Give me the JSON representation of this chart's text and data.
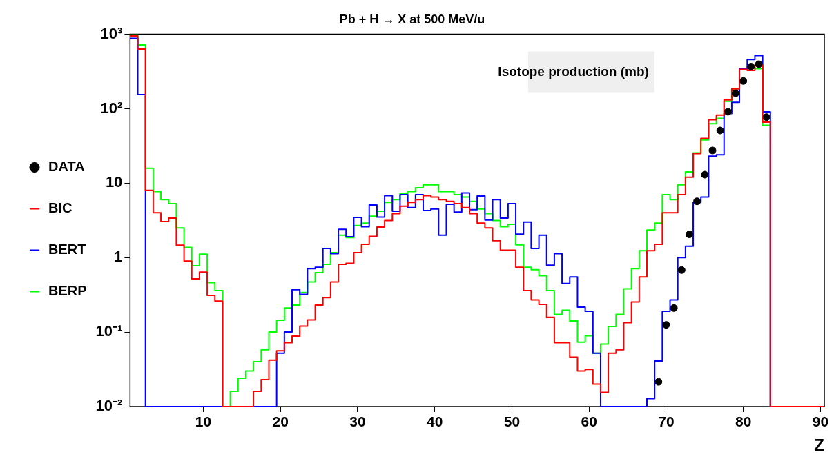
{
  "chart_data": {
    "type": "histogram",
    "title": "Pb + H → X at 500 MeV/u",
    "xlabel": "Z",
    "annotations": [
      "Isotope production (mb)"
    ],
    "bins": [
      0.5,
      1.5,
      2.5,
      3.5,
      4.5,
      5.5,
      6.5,
      7.5,
      8.5,
      9.5,
      10.5,
      11.5,
      12.5,
      13.5,
      14.5,
      15.5,
      16.5,
      17.5,
      18.5,
      19.5,
      20.5,
      21.5,
      22.5,
      23.5,
      24.5,
      25.5,
      26.5,
      27.5,
      28.5,
      29.5,
      30.5,
      31.5,
      32.5,
      33.5,
      34.5,
      35.5,
      36.5,
      37.5,
      38.5,
      39.5,
      40.5,
      41.5,
      42.5,
      43.5,
      44.5,
      45.5,
      46.5,
      47.5,
      48.5,
      49.5,
      50.5,
      51.5,
      52.5,
      53.5,
      54.5,
      55.5,
      56.5,
      57.5,
      58.5,
      59.5,
      60.5,
      61.5,
      62.5,
      63.5,
      64.5,
      65.5,
      66.5,
      67.5,
      68.5,
      69.5,
      70.5,
      71.5,
      72.5,
      73.5,
      74.5,
      75.5,
      76.5,
      77.5,
      78.5,
      79.5,
      80.5,
      81.5,
      82.5,
      83.5,
      84.5,
      85.5,
      86.5,
      87.5,
      88.5,
      89.5,
      90.5
    ],
    "series": [
      {
        "name": "DATA",
        "type": "scatter",
        "marker": "circle",
        "color": "#000000",
        "x": [
          69,
          70,
          71,
          72,
          73,
          74,
          75,
          76,
          77,
          78,
          79,
          80,
          81,
          82,
          83
        ],
        "values": [
          0.0215,
          0.125,
          0.21,
          0.68,
          2.05,
          5.7,
          13,
          27.5,
          51,
          91,
          161,
          236,
          367,
          396,
          77
        ]
      },
      {
        "name": "BIC",
        "color": "#ff0000",
        "values": [
          950,
          634,
          8.0,
          4.0,
          3.05,
          3.4,
          1.47,
          0.9,
          0.52,
          0.64,
          0.31,
          0.26,
          0.01,
          0.01,
          0.01,
          0.01,
          0.016,
          0.023,
          0.042,
          0.056,
          0.072,
          0.088,
          0.12,
          0.146,
          0.23,
          0.29,
          0.47,
          0.81,
          0.84,
          1.17,
          1.51,
          1.93,
          2.57,
          3.15,
          3.9,
          4.9,
          5.5,
          6.0,
          6.8,
          6.5,
          6.0,
          5.7,
          5.3,
          4.7,
          3.9,
          2.9,
          2.5,
          1.69,
          1.26,
          1.26,
          0.74,
          0.36,
          0.27,
          0.235,
          0.158,
          0.072,
          0.072,
          0.046,
          0.03,
          0.0315,
          0.02,
          0.0155,
          0.052,
          0.058,
          0.134,
          0.254,
          0.55,
          1.24,
          1.51,
          4.0,
          4.0,
          7.0,
          12,
          25,
          40,
          71,
          82,
          131,
          185,
          337,
          327,
          387,
          66,
          0.01,
          0.01,
          0.01,
          0.01,
          0.01,
          0.01,
          0.01
        ]
      },
      {
        "name": "BERT",
        "color": "#0000ff",
        "values": [
          880,
          155,
          0.01,
          0.01,
          0.01,
          0.01,
          0.01,
          0.01,
          0.01,
          0.01,
          0.01,
          0.01,
          0.01,
          0.01,
          0.01,
          0.01,
          0.01,
          0.01,
          0.01,
          0.052,
          0.1,
          0.37,
          0.32,
          0.71,
          0.74,
          1.33,
          1.13,
          2.4,
          1.91,
          3.47,
          2.6,
          5.1,
          3.5,
          6.8,
          4.2,
          7.0,
          4.7,
          7.0,
          4.3,
          4.5,
          2.0,
          5.2,
          4.1,
          7.4,
          4.4,
          6.7,
          3.2,
          6.0,
          3.4,
          5.3,
          2.07,
          3.0,
          1.33,
          2.0,
          0.79,
          1.13,
          0.45,
          0.55,
          0.216,
          0.19,
          0.052,
          0.01,
          0.01,
          0.01,
          0.01,
          0.01,
          0.01,
          0.0128,
          0.041,
          0.19,
          0.27,
          1.0,
          1.42,
          5.5,
          6.5,
          23,
          24,
          86,
          122,
          345,
          457,
          516,
          91,
          0.01,
          0.01,
          0.01,
          0.01,
          0.01,
          0.01,
          0.01
        ]
      },
      {
        "name": "BERP",
        "color": "#00ff00",
        "values": [
          980,
          720,
          15.9,
          7.7,
          6.0,
          5.3,
          2.5,
          1.37,
          0.78,
          1.11,
          0.46,
          0.36,
          0.01,
          0.016,
          0.024,
          0.03,
          0.04,
          0.058,
          0.1,
          0.144,
          0.21,
          0.23,
          0.34,
          0.47,
          0.63,
          0.81,
          1.17,
          2.0,
          1.86,
          2.7,
          2.9,
          3.6,
          4.2,
          5.5,
          6.0,
          7.3,
          7.7,
          8.7,
          9.5,
          9.5,
          7.7,
          7.7,
          7.0,
          6.5,
          5.7,
          4.5,
          3.9,
          3.15,
          2.6,
          2.8,
          1.48,
          0.74,
          0.69,
          0.57,
          0.36,
          0.173,
          0.196,
          0.141,
          0.073,
          0.089,
          0.052,
          0.069,
          0.119,
          0.173,
          0.38,
          0.71,
          1.24,
          2.35,
          2.9,
          7.0,
          6.0,
          9.5,
          14.2,
          25.5,
          38,
          63,
          74,
          126,
          185,
          337,
          358,
          345,
          60,
          0.01,
          0.01,
          0.01,
          0.01,
          0.01,
          0.01,
          0.01
        ]
      }
    ],
    "xlim": [
      0.5,
      90.5
    ],
    "xticks": [
      10,
      20,
      30,
      40,
      50,
      60,
      70,
      80,
      90
    ],
    "ylim": [
      0.01,
      1000
    ],
    "yticks": [
      {
        "value": 0.01,
        "label": "10⁻²"
      },
      {
        "value": 0.1,
        "label": "10⁻¹"
      },
      1,
      10,
      {
        "value": 100,
        "label": "10²"
      },
      {
        "value": 1000,
        "label": "10³"
      }
    ],
    "log": true,
    "grid": false,
    "legend": "left"
  }
}
